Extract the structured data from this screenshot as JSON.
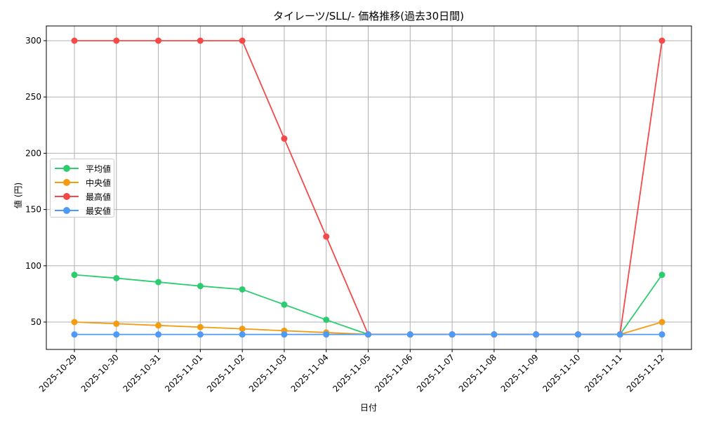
{
  "chart_data": {
    "type": "line",
    "title": "タイレーツ/SLL/- 価格推移(過去30日間)",
    "xlabel": "日付",
    "ylabel": "値 (円)",
    "categories": [
      "2025-10-29",
      "2025-10-30",
      "2025-10-31",
      "2025-11-01",
      "2025-11-02",
      "2025-11-03",
      "2025-11-04",
      "2025-11-05",
      "2025-11-06",
      "2025-11-07",
      "2025-11-08",
      "2025-11-09",
      "2025-11-10",
      "2025-11-11",
      "2025-11-12"
    ],
    "yticks": [
      50,
      100,
      150,
      200,
      250,
      300
    ],
    "ylim": [
      25,
      313
    ],
    "grid": true,
    "legend_position": "center left",
    "series": [
      {
        "name": "平均値",
        "color": "#2ecc71",
        "values": [
          92,
          89,
          85.5,
          82,
          79,
          65.5,
          52,
          39,
          39,
          39,
          39,
          39,
          39,
          39,
          92
        ]
      },
      {
        "name": "中央値",
        "color": "#f39c12",
        "values": [
          50,
          48.5,
          47,
          45.5,
          44,
          42.3,
          40.7,
          39,
          39,
          39,
          39,
          39,
          39,
          39,
          50
        ]
      },
      {
        "name": "最高値",
        "color": "#f44949",
        "values": [
          300,
          300,
          300,
          300,
          300,
          213,
          126,
          39,
          39,
          39,
          39,
          39,
          39,
          39,
          300
        ]
      },
      {
        "name": "最安値",
        "color": "#4e9af7",
        "values": [
          39,
          39,
          39,
          39,
          39,
          39,
          39,
          39,
          39,
          39,
          39,
          39,
          39,
          39,
          39
        ]
      }
    ]
  }
}
